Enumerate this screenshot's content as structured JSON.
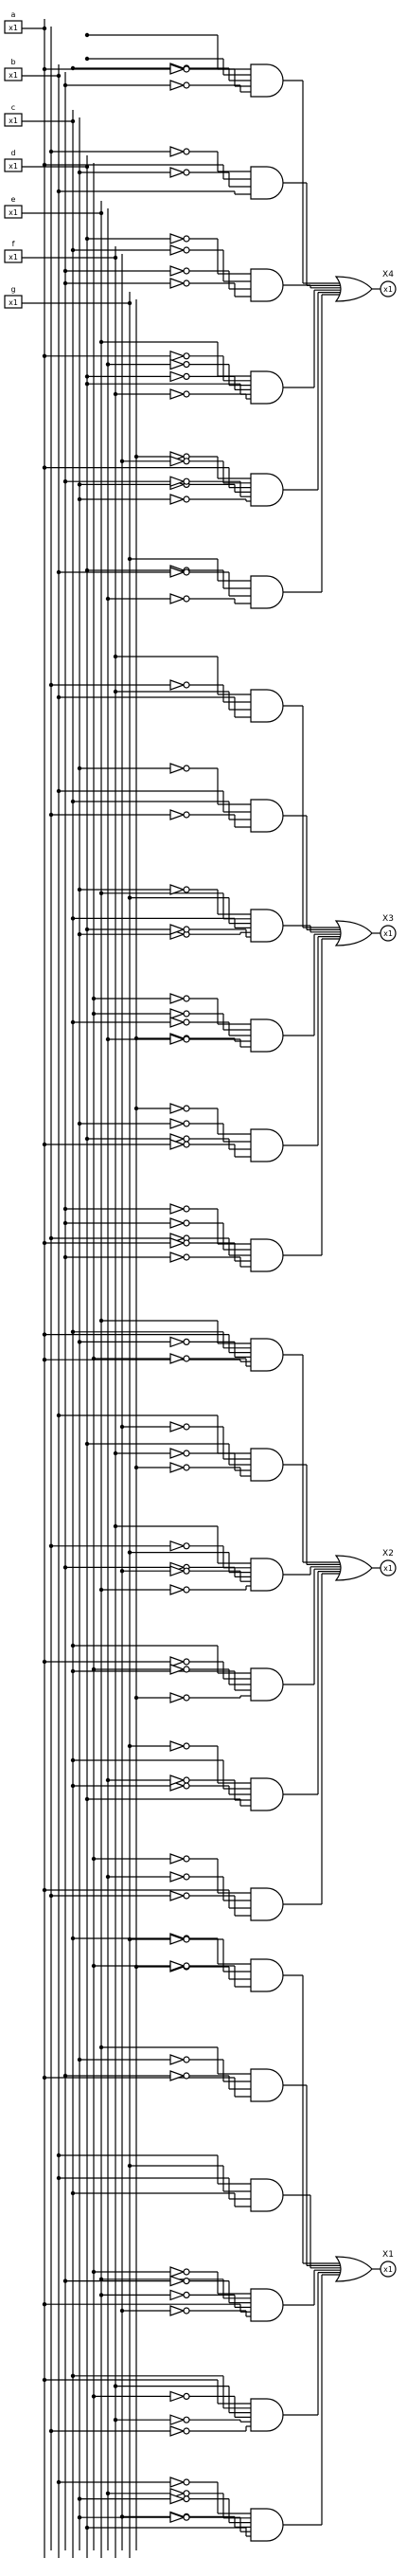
{
  "diagram": {
    "title": "",
    "inputs": [
      {
        "name": "a",
        "port": "x1"
      },
      {
        "name": "b",
        "port": "x1"
      },
      {
        "name": "c",
        "port": "x1"
      },
      {
        "name": "d",
        "port": "x1"
      },
      {
        "name": "e",
        "port": "x1"
      },
      {
        "name": "f",
        "port": "x1"
      },
      {
        "name": "g",
        "port": "x1"
      }
    ],
    "outputs": [
      {
        "name": "X4",
        "port": "x1",
        "gate_count": 6
      },
      {
        "name": "X3",
        "port": "x1",
        "gate_count": 6
      },
      {
        "name": "X2",
        "port": "x1",
        "gate_count": 6
      },
      {
        "name": "X1",
        "port": "x1",
        "gate_count": 6
      }
    ]
  }
}
